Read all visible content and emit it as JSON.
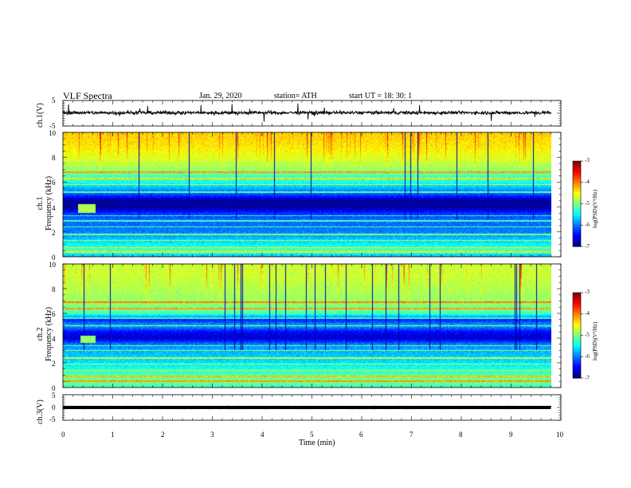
{
  "header": {
    "title": "VLF  Spectra",
    "date": "Jan. 29, 2020",
    "station": "station= ATH",
    "start": "start  UT  =   18: 30: 1"
  },
  "colors": {
    "waveform": "#000000",
    "spectro_low": "#000066",
    "spectro_mid": "#00c8ff",
    "spectro_high": "#ffff00",
    "spectro_peak": "#ff0000"
  },
  "chart_data": [
    {
      "type": "line",
      "panel": "ch1-waveform",
      "ylabel": "ch.1(V)",
      "ylim": [
        -5,
        5
      ],
      "ytick_labels": [
        "5",
        "-5"
      ],
      "xlim": [
        0,
        10
      ],
      "x_end": 9.8,
      "baseline": 0.2,
      "noise_amplitude": 1.0
    },
    {
      "type": "heatmap",
      "panel": "ch1-spectrogram",
      "ylabel": "ch.1\nFrequency (kHz)",
      "ylim": [
        0,
        10
      ],
      "ytick_labels": [
        "0",
        "2",
        "4",
        "6",
        "8",
        "10"
      ],
      "xlim": [
        0,
        10
      ],
      "x_end": 9.8,
      "colorbar": {
        "label": "log(PSD)(V²/Hz)",
        "range": [
          -7,
          -3
        ],
        "tick_labels": [
          "-3",
          "-4",
          "-5",
          "-6",
          "-7"
        ]
      },
      "freq_profile_khz": [
        0,
        0.5,
        1,
        2,
        3,
        3.5,
        4,
        4.5,
        5,
        5.5,
        6,
        6.5,
        7,
        8,
        9,
        10
      ],
      "psd_profile": [
        -5.8,
        -5.2,
        -5.5,
        -6.0,
        -6.1,
        -6.3,
        -6.9,
        -6.9,
        -6.2,
        -5.8,
        -5.4,
        -5.2,
        -4.9,
        -4.6,
        -4.4,
        -4.3
      ],
      "strong_lines_khz": [
        0.4,
        0.75,
        1.3,
        1.8,
        2.4,
        2.9,
        3.3,
        5.2,
        5.8,
        6.3,
        6.8
      ],
      "burst": {
        "t_start": 0.3,
        "t_end": 0.65,
        "f_start": 3.5,
        "f_end": 4.2,
        "psd": -4.8
      }
    },
    {
      "type": "heatmap",
      "panel": "ch2-spectrogram",
      "ylabel": "ch.2\nFrequency (kHz)",
      "ylim": [
        0,
        10
      ],
      "ytick_labels": [
        "0",
        "2",
        "4",
        "6",
        "8",
        "10"
      ],
      "xlim": [
        0,
        10
      ],
      "x_end": 9.8,
      "colorbar": {
        "label": "log(PSD)(V²/Hz)",
        "range": [
          -7,
          -3
        ],
        "tick_labels": [
          "-3",
          "-4",
          "-5",
          "-6",
          "-7"
        ]
      },
      "freq_profile_khz": [
        0,
        0.5,
        1,
        2,
        3,
        3.5,
        4,
        4.5,
        5,
        5.5,
        6,
        6.5,
        7,
        8,
        9,
        10
      ],
      "psd_profile": [
        -5.3,
        -5.0,
        -5.2,
        -5.6,
        -5.8,
        -6.0,
        -6.7,
        -6.5,
        -5.8,
        -6.4,
        -5.2,
        -5.0,
        -4.9,
        -4.8,
        -4.7,
        -4.7
      ],
      "strong_lines_khz": [
        0.5,
        0.9,
        1.4,
        1.9,
        2.4,
        3.0,
        3.4,
        5.0,
        5.6,
        6.4,
        6.9
      ],
      "burst": {
        "t_start": 0.35,
        "t_end": 0.65,
        "f_start": 3.6,
        "f_end": 4.2,
        "psd": -4.9
      }
    },
    {
      "type": "line",
      "panel": "ch3-waveform",
      "ylabel": "ch.3(V)",
      "ylim": [
        -5,
        5
      ],
      "ytick_labels": [
        "5",
        "0",
        "-5"
      ],
      "xlim": [
        0,
        10
      ],
      "x_end": 9.8,
      "baseline": 0.0,
      "noise_amplitude": 0.05,
      "xlabel": "Time  (min)",
      "xtick_labels": [
        "0",
        "1",
        "2",
        "3",
        "4",
        "5",
        "6",
        "7",
        "8",
        "9",
        "10"
      ]
    }
  ]
}
